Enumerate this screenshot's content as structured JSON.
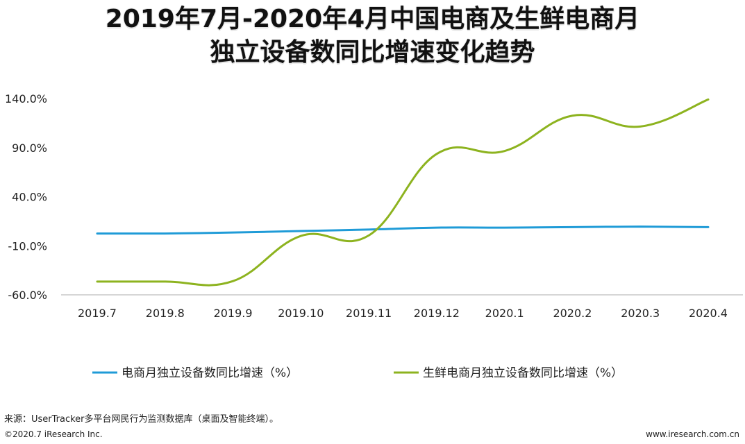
{
  "chart_data": {
    "type": "line",
    "title_lines": [
      "2019年7月-2020年4月中国电商及生鲜电商月",
      "独立设备数同比增速变化趋势"
    ],
    "categories": [
      "2019.7",
      "2019.8",
      "2019.9",
      "2019.10",
      "2019.11",
      "2019.12",
      "2020.1",
      "2020.2",
      "2020.3",
      "2020.4"
    ],
    "y_ticks": [
      "140.0%",
      "90.0%",
      "40.0%",
      "-10.0%",
      "-60.0%"
    ],
    "ylim": [
      -60,
      140
    ],
    "y_unit": "%",
    "grid": false,
    "legend_position": "bottom",
    "series": [
      {
        "name": "电商月独立设备数同比增速（%）",
        "color": "#1f9bd7",
        "values": [
          2.5,
          2.5,
          3.5,
          5.0,
          6.5,
          8.5,
          8.5,
          9.0,
          9.5,
          9.0
        ]
      },
      {
        "name": "生鲜电商月独立设备数同比增速（%）",
        "color": "#8db31f",
        "values": [
          -46.5,
          -46.5,
          -46.0,
          0.0,
          0.5,
          83.5,
          86.5,
          122.5,
          111.5,
          139.0
        ]
      }
    ]
  },
  "footer": {
    "source": "来源：UserTracker多平台网民行为监测数据库（桌面及智能终端）。",
    "copyright": "©2020.7 iResearch Inc.",
    "website": "www.iresearch.com.cn"
  }
}
